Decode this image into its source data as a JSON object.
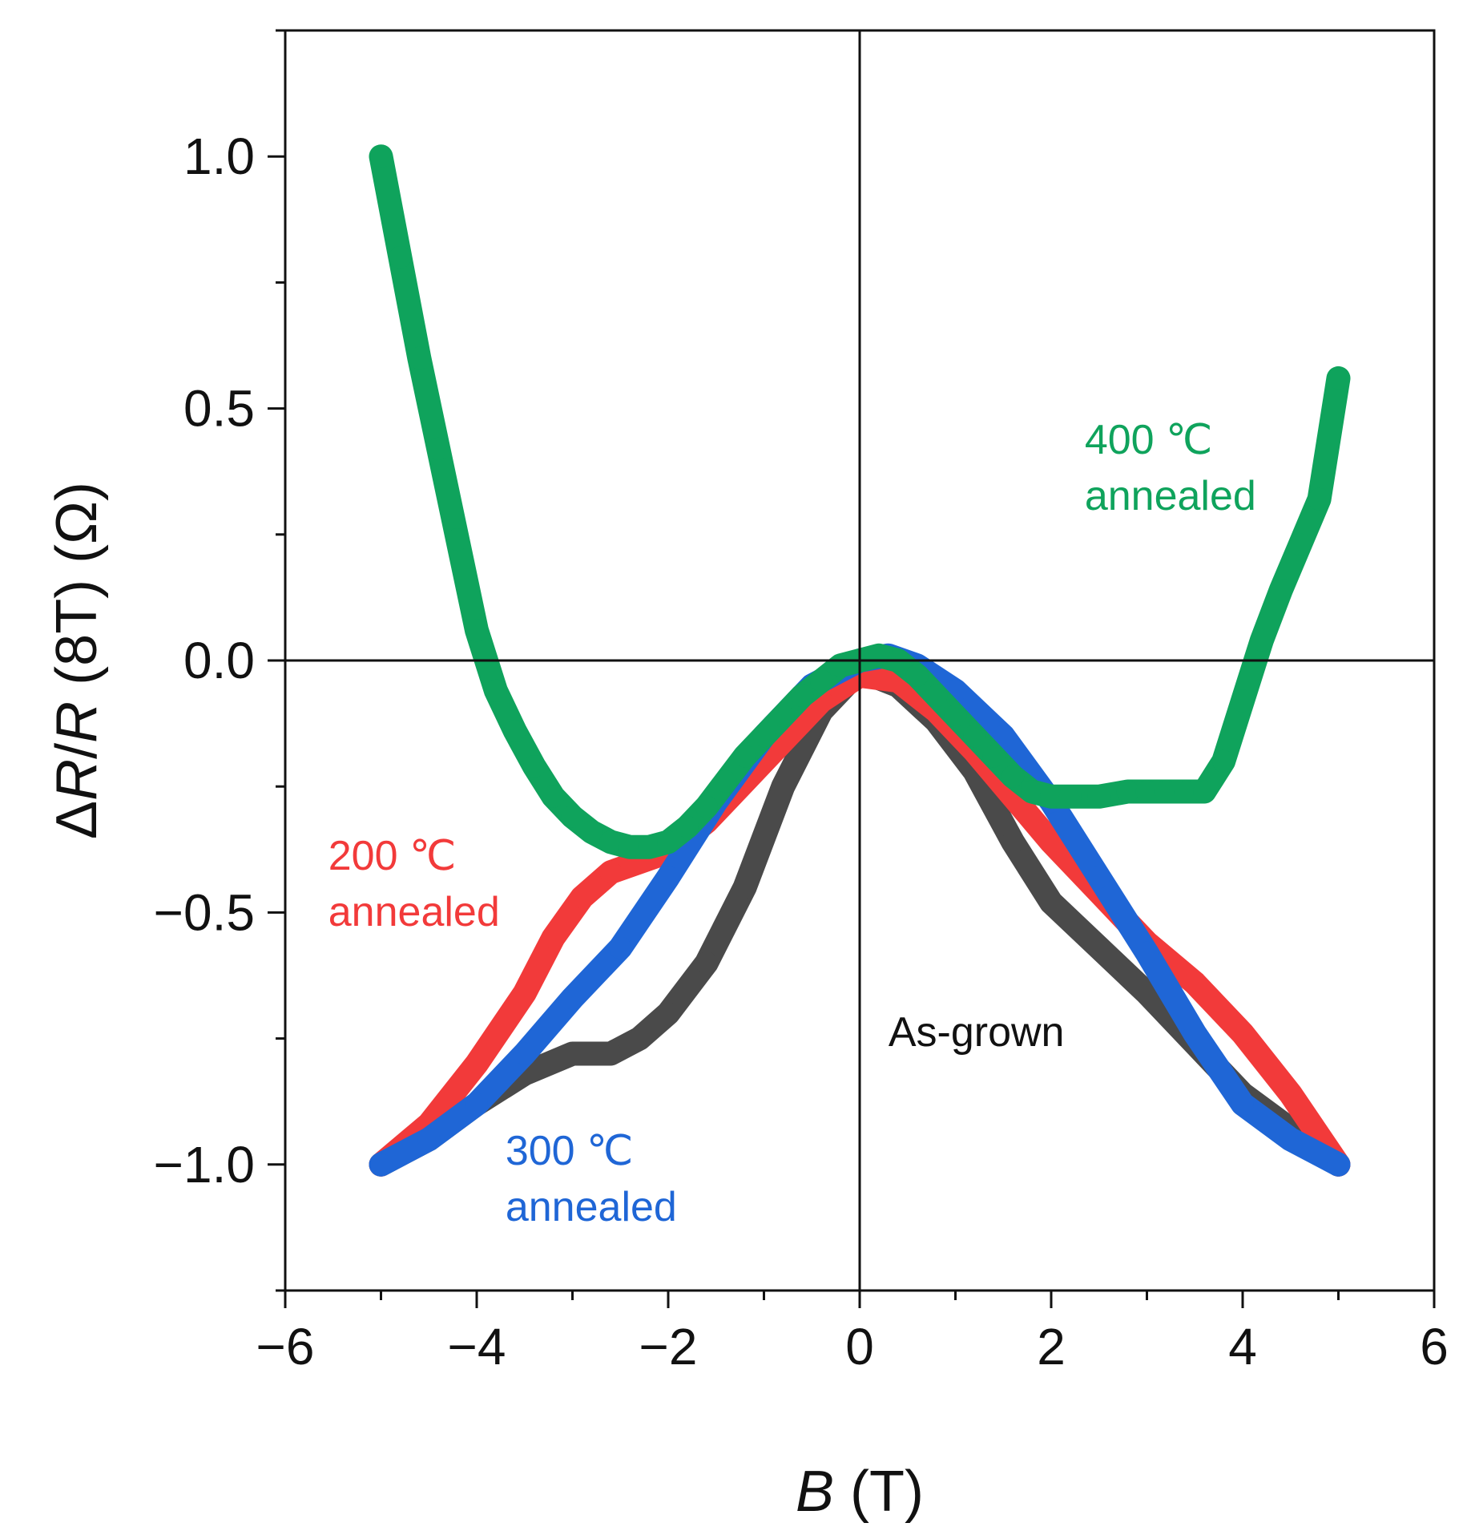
{
  "chart_data": {
    "type": "line",
    "title": "",
    "xlabel_var": "B",
    "xlabel_unit": " (T)",
    "ylabel_prefix": "Δ",
    "ylabel_var1": "R",
    "ylabel_sep": "/",
    "ylabel_var2": "R",
    "ylabel_suffix": " (8T) (Ω)",
    "xlim": [
      -6,
      6
    ],
    "ylim": [
      -1.25,
      1.25
    ],
    "xticks": [
      -6,
      -4,
      -2,
      0,
      2,
      4,
      6
    ],
    "xtick_labels": [
      "−6",
      "−4",
      "−2",
      "0",
      "2",
      "4",
      "6"
    ],
    "yticks": [
      -1.0,
      -0.5,
      0.0,
      0.5,
      1.0
    ],
    "ytick_labels": [
      "−1.0",
      "−0.5",
      "0.0",
      "0.5",
      "1.0"
    ],
    "grid": false,
    "reference_lines": {
      "x": 0,
      "y": 0
    },
    "series": [
      {
        "name": "As-grown",
        "color": "#4a4a4a",
        "x": [
          -5.0,
          -4.5,
          -4.0,
          -3.5,
          -3.0,
          -2.6,
          -2.3,
          -2.0,
          -1.6,
          -1.2,
          -0.8,
          -0.4,
          0.0,
          0.4,
          0.8,
          1.2,
          1.6,
          2.0,
          2.5,
          3.0,
          3.5,
          4.0,
          4.5,
          5.0
        ],
        "y": [
          -1.0,
          -0.95,
          -0.88,
          -0.82,
          -0.78,
          -0.78,
          -0.75,
          -0.7,
          -0.6,
          -0.45,
          -0.25,
          -0.1,
          -0.02,
          -0.05,
          -0.12,
          -0.22,
          -0.36,
          -0.48,
          -0.57,
          -0.66,
          -0.76,
          -0.86,
          -0.93,
          -1.0
        ]
      },
      {
        "name": "200 ℃ annealed",
        "color": "#f23a3a",
        "x": [
          -5.0,
          -4.5,
          -4.0,
          -3.5,
          -3.2,
          -2.9,
          -2.6,
          -2.3,
          -2.0,
          -1.6,
          -1.2,
          -0.8,
          -0.4,
          0.0,
          0.4,
          0.8,
          1.2,
          1.6,
          2.0,
          2.5,
          3.0,
          3.5,
          4.0,
          4.5,
          5.0
        ],
        "y": [
          -1.0,
          -0.92,
          -0.8,
          -0.66,
          -0.55,
          -0.47,
          -0.42,
          -0.4,
          -0.38,
          -0.32,
          -0.24,
          -0.16,
          -0.08,
          -0.03,
          -0.04,
          -0.1,
          -0.18,
          -0.27,
          -0.36,
          -0.46,
          -0.56,
          -0.64,
          -0.74,
          -0.86,
          -1.0
        ]
      },
      {
        "name": "300 ℃ annealed",
        "color": "#1f66d6",
        "x": [
          -5.0,
          -4.5,
          -4.0,
          -3.5,
          -3.0,
          -2.5,
          -2.0,
          -1.5,
          -1.0,
          -0.5,
          0.0,
          0.3,
          0.6,
          1.0,
          1.5,
          2.0,
          2.5,
          3.0,
          3.5,
          4.0,
          4.5,
          5.0
        ],
        "y": [
          -1.0,
          -0.95,
          -0.88,
          -0.78,
          -0.67,
          -0.57,
          -0.43,
          -0.28,
          -0.15,
          -0.05,
          0.0,
          0.01,
          -0.01,
          -0.06,
          -0.15,
          -0.28,
          -0.43,
          -0.58,
          -0.74,
          -0.88,
          -0.95,
          -1.0
        ]
      },
      {
        "name": "400 ℃ annealed",
        "color": "#0fa35c",
        "x": [
          -5.0,
          -4.8,
          -4.6,
          -4.4,
          -4.2,
          -4.0,
          -3.8,
          -3.6,
          -3.4,
          -3.2,
          -3.0,
          -2.8,
          -2.6,
          -2.4,
          -2.2,
          -2.0,
          -1.8,
          -1.6,
          -1.4,
          -1.2,
          -1.0,
          -0.8,
          -0.6,
          -0.4,
          -0.2,
          0.0,
          0.2,
          0.4,
          0.6,
          0.8,
          1.0,
          1.2,
          1.4,
          1.6,
          1.8,
          2.0,
          2.2,
          2.5,
          2.8,
          3.0,
          3.2,
          3.4,
          3.6,
          3.8,
          4.0,
          4.2,
          4.4,
          4.6,
          4.8,
          5.0
        ],
        "y": [
          1.0,
          0.8,
          0.6,
          0.42,
          0.24,
          0.06,
          -0.06,
          -0.14,
          -0.21,
          -0.27,
          -0.31,
          -0.34,
          -0.36,
          -0.37,
          -0.37,
          -0.36,
          -0.33,
          -0.29,
          -0.24,
          -0.19,
          -0.15,
          -0.11,
          -0.07,
          -0.04,
          -0.01,
          0.0,
          0.01,
          0.0,
          -0.03,
          -0.07,
          -0.11,
          -0.15,
          -0.19,
          -0.23,
          -0.26,
          -0.27,
          -0.27,
          -0.27,
          -0.26,
          -0.26,
          -0.26,
          -0.26,
          -0.26,
          -0.2,
          -0.08,
          0.04,
          0.14,
          0.23,
          0.32,
          0.56
        ]
      }
    ],
    "annotations": [
      {
        "line1": "200 ℃",
        "line2": "annealed",
        "color": "#f23a3a",
        "at_x": -5.55,
        "at_y": -0.415
      },
      {
        "line1": "300 ℃",
        "line2": "annealed",
        "color": "#1f66d6",
        "at_x": -3.7,
        "at_y": -1.0
      },
      {
        "line1": "As-grown",
        "line2": "",
        "color": "#111111",
        "at_x": 0.3,
        "at_y": -0.765
      },
      {
        "line1": "400 ℃",
        "line2": "annealed",
        "color": "#0fa35c",
        "at_x": 2.35,
        "at_y": 0.41
      }
    ]
  }
}
